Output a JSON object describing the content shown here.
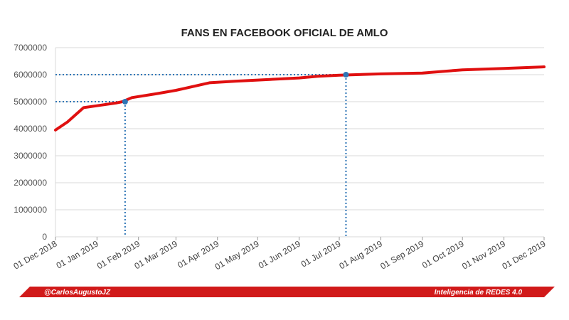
{
  "footer": {
    "left_text": "@CarlosAugustoJZ",
    "right_text": "Inteligencia de REDES 4.0",
    "color": "#d11a1a"
  },
  "chart_data": {
    "type": "line",
    "title": "FANS EN FACEBOOK OFICIAL DE AMLO",
    "xlabel": "",
    "ylabel": "",
    "x_range": [
      "2018-12-01",
      "2019-12-01"
    ],
    "ylim": [
      0,
      7000000
    ],
    "y_ticks": [
      0,
      1000000,
      2000000,
      3000000,
      4000000,
      5000000,
      6000000,
      7000000
    ],
    "y_tick_labels": [
      "0",
      "1000000",
      "2000000",
      "3000000",
      "4000000",
      "5000000",
      "6000000",
      "7000000"
    ],
    "x_ticks": [
      "2018-12-01",
      "2019-01-01",
      "2019-02-01",
      "2019-03-01",
      "2019-04-01",
      "2019-05-01",
      "2019-06-01",
      "2019-07-01",
      "2019-08-01",
      "2019-09-01",
      "2019-10-01",
      "2019-11-01",
      "2019-12-01"
    ],
    "x_tick_labels": [
      "01 Dec 2018",
      "01 Jan 2019",
      "01 Feb 2019",
      "01 Mar 2019",
      "01 Apr 2019",
      "01 May 2019",
      "01 Jun 2019",
      "01 Jul 2019",
      "01 Aug 2019",
      "01 Sep 2019",
      "01 Oct 2019",
      "01 Nov 2019",
      "01 Dec 2019"
    ],
    "grid": true,
    "series": [
      {
        "color": "#e01010",
        "points": [
          {
            "x": "2018-12-01",
            "y": 3950000
          },
          {
            "x": "2018-12-10",
            "y": 4250000
          },
          {
            "x": "2018-12-22",
            "y": 4780000
          },
          {
            "x": "2019-01-01",
            "y": 4850000
          },
          {
            "x": "2019-01-15",
            "y": 4950000
          },
          {
            "x": "2019-01-20",
            "y": 5000000
          },
          {
            "x": "2019-01-27",
            "y": 5150000
          },
          {
            "x": "2019-02-15",
            "y": 5300000
          },
          {
            "x": "2019-03-01",
            "y": 5420000
          },
          {
            "x": "2019-03-26",
            "y": 5700000
          },
          {
            "x": "2019-04-15",
            "y": 5760000
          },
          {
            "x": "2019-05-01",
            "y": 5800000
          },
          {
            "x": "2019-06-01",
            "y": 5880000
          },
          {
            "x": "2019-06-15",
            "y": 5940000
          },
          {
            "x": "2019-07-01",
            "y": 5980000
          },
          {
            "x": "2019-08-01",
            "y": 6030000
          },
          {
            "x": "2019-09-01",
            "y": 6060000
          },
          {
            "x": "2019-10-01",
            "y": 6180000
          },
          {
            "x": "2019-11-01",
            "y": 6230000
          },
          {
            "x": "2019-12-01",
            "y": 6290000
          }
        ]
      }
    ],
    "markers": [
      {
        "x": "2019-01-22",
        "y": 5000000,
        "color": "#2e75b6"
      },
      {
        "x": "2019-07-06",
        "y": 6000000,
        "color": "#2e75b6"
      }
    ]
  }
}
